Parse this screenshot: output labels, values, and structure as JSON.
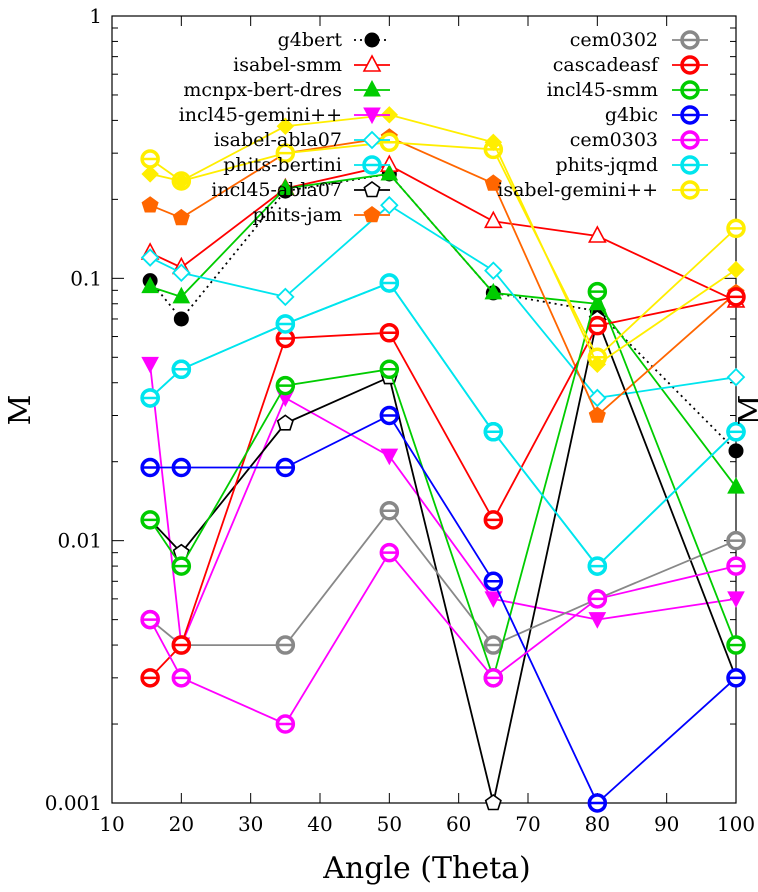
{
  "chart_data": {
    "type": "line",
    "title": "",
    "xlabel": "Angle (Theta)",
    "ylabel": "M",
    "ylabel_right": "M",
    "xlim": [
      10,
      100
    ],
    "ylim": [
      0.001,
      1
    ],
    "yscale": "log",
    "grid": false,
    "legend_placement": "top",
    "x_ticks": [
      10,
      20,
      30,
      40,
      50,
      60,
      70,
      80,
      90,
      100
    ],
    "x_tick_labels": [
      "10",
      "20",
      "30",
      "40",
      "50",
      "60",
      "70",
      "80",
      "90",
      "100"
    ],
    "y_ticks": [
      0.001,
      0.01,
      0.1,
      1
    ],
    "y_tick_labels": [
      "0.001",
      "0.01",
      "0.1",
      "1"
    ],
    "x": [
      15.5,
      20,
      35,
      50,
      65,
      80,
      100
    ],
    "series": [
      {
        "name": "g4bert",
        "color": "#000000",
        "marker": "circle-filled",
        "dash": "2,4",
        "values": [
          0.098,
          0.07,
          0.215,
          0.25,
          0.088,
          0.075,
          0.022
        ]
      },
      {
        "name": "isabel-smm",
        "color": "#ff0000",
        "marker": "triangle-open",
        "dash": "",
        "values": [
          0.125,
          0.11,
          0.22,
          0.27,
          0.165,
          0.145,
          0.082
        ]
      },
      {
        "name": "mcnpx-bert-dres",
        "color": "#00cc00",
        "marker": "triangle-filled",
        "dash": "",
        "values": [
          0.093,
          0.085,
          0.22,
          0.25,
          0.088,
          0.08,
          0.016
        ]
      },
      {
        "name": "incl45-gemini++",
        "color": "#ff00ff",
        "marker": "triangle-down-filled",
        "dash": "",
        "values": [
          0.047,
          0.004,
          0.035,
          0.021,
          0.006,
          0.005,
          0.006
        ]
      },
      {
        "name": "isabel-abla07",
        "color": "#00e5ee",
        "marker": "diamond-open",
        "dash": "",
        "values": [
          0.12,
          0.105,
          0.085,
          0.19,
          0.107,
          0.035,
          0.042
        ]
      },
      {
        "name": "phits-bertini",
        "color": "#00e5ee",
        "marker": "circle-thick",
        "dash": "",
        "values": [
          0.035,
          0.045,
          0.067,
          0.096,
          0.026,
          0.008,
          0.026
        ]
      },
      {
        "name": "incl45-abla07",
        "color": "#000000",
        "marker": "pentagon-open",
        "dash": "",
        "values": [
          0.012,
          0.009,
          0.028,
          0.042,
          0.001,
          0.07,
          0.003
        ]
      },
      {
        "name": "phits-jam",
        "color": "#ff6600",
        "marker": "pentagon-filled",
        "dash": "",
        "values": [
          0.19,
          0.17,
          0.3,
          0.345,
          0.23,
          0.03,
          0.088
        ]
      },
      {
        "name": "cem0302",
        "color": "#888888",
        "marker": "circle-thick",
        "dash": "",
        "values": [
          0.005,
          0.004,
          0.004,
          0.013,
          0.004,
          0.006,
          0.01
        ]
      },
      {
        "name": "cascadeasf",
        "color": "#ff0000",
        "marker": "circle-thick",
        "dash": "",
        "values": [
          0.003,
          0.004,
          0.059,
          0.062,
          0.012,
          0.066,
          0.085
        ]
      },
      {
        "name": "incl45-smm",
        "color": "#00cc00",
        "marker": "circle-thick",
        "dash": "",
        "values": [
          0.012,
          0.008,
          0.039,
          0.045,
          0.003,
          0.089,
          0.004
        ]
      },
      {
        "name": "g4bic",
        "color": "#0000ff",
        "marker": "circle-thick",
        "dash": "",
        "values": [
          0.019,
          0.019,
          0.019,
          0.03,
          0.007,
          0.001,
          0.003
        ]
      },
      {
        "name": "cem0303",
        "color": "#ff00ff",
        "marker": "circle-thick",
        "dash": "",
        "values": [
          0.005,
          0.003,
          0.002,
          0.009,
          0.003,
          0.006,
          0.008
        ]
      },
      {
        "name": "phits-jqmd",
        "color": "#00e5ee",
        "marker": "circle-thick",
        "dash": "",
        "values": [
          0.035,
          0.045,
          0.067,
          0.096,
          0.026,
          0.008,
          0.026
        ]
      },
      {
        "name": "isabel-gemini++",
        "color": "#ffee00",
        "marker": "circle-thick",
        "dash": "",
        "values": [
          0.285,
          0.235,
          0.3,
          0.33,
          0.31,
          0.05,
          0.155
        ]
      },
      {
        "name": "",
        "color": "#ffee00",
        "marker": "diamond-filled",
        "dash": "",
        "values": [
          0.25,
          0.235,
          0.38,
          0.42,
          0.33,
          0.047,
          0.108
        ]
      }
    ]
  }
}
